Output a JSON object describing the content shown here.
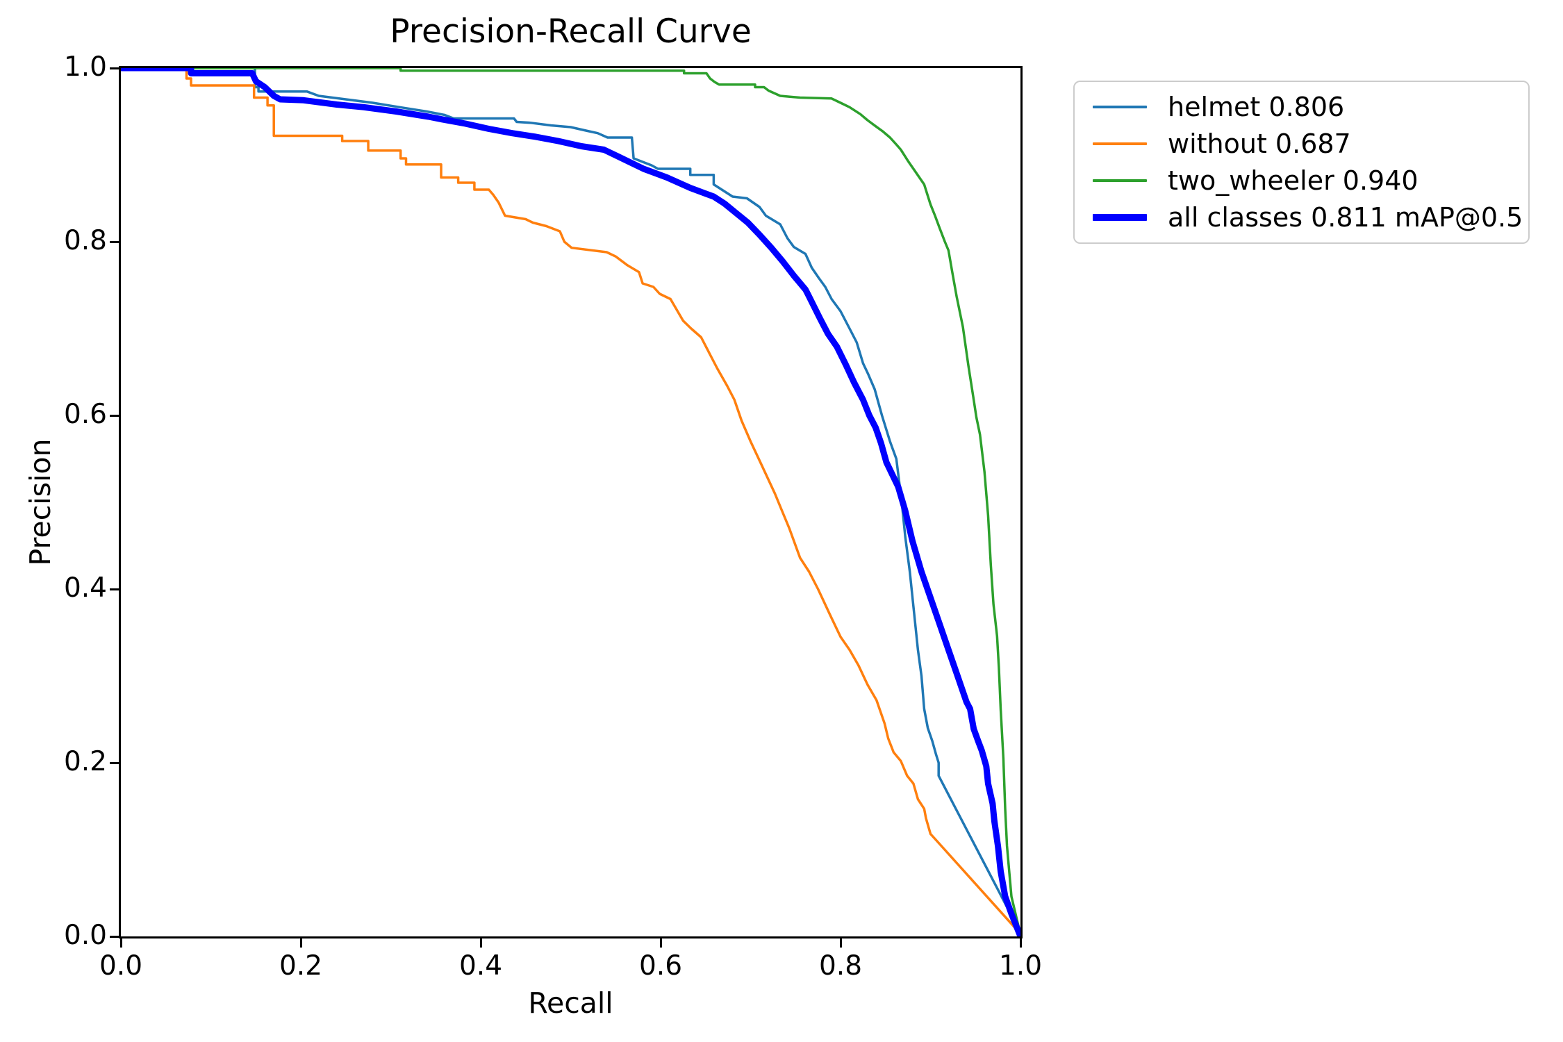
{
  "title": "Precision-Recall Curve",
  "axes": {
    "xlabel": "Recall",
    "ylabel": "Precision",
    "x_tick_labels": [
      "0.0",
      "0.2",
      "0.4",
      "0.6",
      "0.8",
      "1.0"
    ],
    "y_tick_labels": [
      "1.0",
      "0.8",
      "0.6",
      "0.4",
      "0.2",
      "0.0"
    ]
  },
  "legend": {
    "entries": [
      {
        "label": "helmet 0.806",
        "color": "#1f77b4",
        "thick": false
      },
      {
        "label": "without 0.687",
        "color": "#ff7f0e",
        "thick": false
      },
      {
        "label": "two_wheeler 0.940",
        "color": "#2ca02c",
        "thick": false
      },
      {
        "label": "all classes 0.811 mAP@0.5",
        "color": "#0000ff",
        "thick": true
      }
    ]
  },
  "colors": {
    "spine": "#000000",
    "legend_border": "#cccccc",
    "background": "#ffffff"
  },
  "chart_data": {
    "type": "line",
    "title": "Precision-Recall Curve",
    "xlabel": "Recall",
    "ylabel": "Precision",
    "xlim": [
      0,
      1
    ],
    "ylim": [
      0,
      1
    ],
    "x_ticks": [
      0.0,
      0.2,
      0.4,
      0.6,
      0.8,
      1.0
    ],
    "y_ticks": [
      0.0,
      0.2,
      0.4,
      0.6,
      0.8,
      1.0
    ],
    "grid": false,
    "legend_position": "outside upper right",
    "series": [
      {
        "name": "helmet 0.806",
        "color": "#1f77b4",
        "linewidth": 3.5,
        "ap": 0.806,
        "points": [
          [
            0,
            1
          ],
          [
            0.149,
            1
          ],
          [
            0.149,
            0.978
          ],
          [
            0.153,
            0.978
          ],
          [
            0.153,
            0.973
          ],
          [
            0.207,
            0.973
          ],
          [
            0.22,
            0.968
          ],
          [
            0.25,
            0.964
          ],
          [
            0.28,
            0.96
          ],
          [
            0.31,
            0.955
          ],
          [
            0.34,
            0.95
          ],
          [
            0.36,
            0.946
          ],
          [
            0.37,
            0.942
          ],
          [
            0.437,
            0.942
          ],
          [
            0.44,
            0.938
          ],
          [
            0.455,
            0.937
          ],
          [
            0.478,
            0.934
          ],
          [
            0.5,
            0.932
          ],
          [
            0.517,
            0.928
          ],
          [
            0.53,
            0.925
          ],
          [
            0.541,
            0.92
          ],
          [
            0.568,
            0.92
          ],
          [
            0.57,
            0.896
          ],
          [
            0.59,
            0.888
          ],
          [
            0.597,
            0.884
          ],
          [
            0.633,
            0.884
          ],
          [
            0.633,
            0.877
          ],
          [
            0.659,
            0.877
          ],
          [
            0.659,
            0.866
          ],
          [
            0.68,
            0.852
          ],
          [
            0.696,
            0.85
          ],
          [
            0.71,
            0.84
          ],
          [
            0.717,
            0.83
          ],
          [
            0.733,
            0.82
          ],
          [
            0.741,
            0.804
          ],
          [
            0.748,
            0.794
          ],
          [
            0.761,
            0.786
          ],
          [
            0.768,
            0.77
          ],
          [
            0.776,
            0.758
          ],
          [
            0.783,
            0.748
          ],
          [
            0.79,
            0.734
          ],
          [
            0.8,
            0.72
          ],
          [
            0.81,
            0.7
          ],
          [
            0.818,
            0.684
          ],
          [
            0.825,
            0.66
          ],
          [
            0.831,
            0.647
          ],
          [
            0.838,
            0.63
          ],
          [
            0.846,
            0.6
          ],
          [
            0.855,
            0.57
          ],
          [
            0.862,
            0.55
          ],
          [
            0.868,
            0.5
          ],
          [
            0.872,
            0.46
          ],
          [
            0.877,
            0.42
          ],
          [
            0.881,
            0.38
          ],
          [
            0.886,
            0.33
          ],
          [
            0.89,
            0.3
          ],
          [
            0.893,
            0.262
          ],
          [
            0.897,
            0.24
          ],
          [
            0.902,
            0.225
          ],
          [
            0.906,
            0.21
          ],
          [
            0.909,
            0.2
          ],
          [
            0.909,
            0.185
          ],
          [
            1,
            0.004
          ]
        ]
      },
      {
        "name": "without 0.687",
        "color": "#ff7f0e",
        "linewidth": 3.5,
        "ap": 0.687,
        "points": [
          [
            0,
            1
          ],
          [
            0.073,
            1
          ],
          [
            0.073,
            0.988
          ],
          [
            0.078,
            0.988
          ],
          [
            0.078,
            0.98
          ],
          [
            0.148,
            0.98
          ],
          [
            0.148,
            0.966
          ],
          [
            0.163,
            0.966
          ],
          [
            0.163,
            0.957
          ],
          [
            0.17,
            0.957
          ],
          [
            0.17,
            0.922
          ],
          [
            0.246,
            0.922
          ],
          [
            0.246,
            0.916
          ],
          [
            0.275,
            0.916
          ],
          [
            0.275,
            0.905
          ],
          [
            0.311,
            0.905
          ],
          [
            0.311,
            0.896
          ],
          [
            0.317,
            0.896
          ],
          [
            0.317,
            0.889
          ],
          [
            0.356,
            0.889
          ],
          [
            0.356,
            0.874
          ],
          [
            0.375,
            0.874
          ],
          [
            0.375,
            0.868
          ],
          [
            0.393,
            0.868
          ],
          [
            0.393,
            0.86
          ],
          [
            0.409,
            0.86
          ],
          [
            0.414,
            0.854
          ],
          [
            0.42,
            0.845
          ],
          [
            0.427,
            0.83
          ],
          [
            0.45,
            0.826
          ],
          [
            0.458,
            0.822
          ],
          [
            0.473,
            0.818
          ],
          [
            0.488,
            0.812
          ],
          [
            0.493,
            0.8
          ],
          [
            0.501,
            0.793
          ],
          [
            0.54,
            0.788
          ],
          [
            0.55,
            0.783
          ],
          [
            0.563,
            0.773
          ],
          [
            0.576,
            0.765
          ],
          [
            0.58,
            0.752
          ],
          [
            0.592,
            0.748
          ],
          [
            0.599,
            0.74
          ],
          [
            0.611,
            0.734
          ],
          [
            0.625,
            0.709
          ],
          [
            0.634,
            0.7
          ],
          [
            0.645,
            0.69
          ],
          [
            0.655,
            0.67
          ],
          [
            0.663,
            0.654
          ],
          [
            0.674,
            0.634
          ],
          [
            0.682,
            0.618
          ],
          [
            0.69,
            0.594
          ],
          [
            0.7,
            0.57
          ],
          [
            0.71,
            0.548
          ],
          [
            0.727,
            0.51
          ],
          [
            0.735,
            0.49
          ],
          [
            0.743,
            0.47
          ],
          [
            0.755,
            0.436
          ],
          [
            0.765,
            0.42
          ],
          [
            0.775,
            0.4
          ],
          [
            0.788,
            0.371
          ],
          [
            0.8,
            0.345
          ],
          [
            0.81,
            0.33
          ],
          [
            0.82,
            0.312
          ],
          [
            0.83,
            0.29
          ],
          [
            0.84,
            0.272
          ],
          [
            0.849,
            0.245
          ],
          [
            0.853,
            0.228
          ],
          [
            0.859,
            0.212
          ],
          [
            0.867,
            0.202
          ],
          [
            0.874,
            0.185
          ],
          [
            0.881,
            0.176
          ],
          [
            0.886,
            0.158
          ],
          [
            0.893,
            0.147
          ],
          [
            0.895,
            0.136
          ],
          [
            0.9,
            0.118
          ],
          [
            0.907,
            0.11
          ],
          [
            1,
            0.003
          ]
        ]
      },
      {
        "name": "two_wheeler 0.940",
        "color": "#2ca02c",
        "linewidth": 3.5,
        "ap": 0.94,
        "points": [
          [
            0,
            1
          ],
          [
            0.311,
            1
          ],
          [
            0.311,
            0.997
          ],
          [
            0.626,
            0.997
          ],
          [
            0.626,
            0.994
          ],
          [
            0.651,
            0.994
          ],
          [
            0.655,
            0.988
          ],
          [
            0.66,
            0.984
          ],
          [
            0.665,
            0.981
          ],
          [
            0.705,
            0.981
          ],
          [
            0.705,
            0.978
          ],
          [
            0.715,
            0.978
          ],
          [
            0.72,
            0.974
          ],
          [
            0.733,
            0.968
          ],
          [
            0.755,
            0.966
          ],
          [
            0.79,
            0.965
          ],
          [
            0.8,
            0.96
          ],
          [
            0.81,
            0.955
          ],
          [
            0.822,
            0.947
          ],
          [
            0.83,
            0.94
          ],
          [
            0.839,
            0.933
          ],
          [
            0.847,
            0.927
          ],
          [
            0.855,
            0.92
          ],
          [
            0.862,
            0.912
          ],
          [
            0.867,
            0.906
          ],
          [
            0.875,
            0.893
          ],
          [
            0.883,
            0.881
          ],
          [
            0.893,
            0.866
          ],
          [
            0.9,
            0.843
          ],
          [
            0.905,
            0.83
          ],
          [
            0.91,
            0.816
          ],
          [
            0.916,
            0.8
          ],
          [
            0.92,
            0.79
          ],
          [
            0.924,
            0.766
          ],
          [
            0.929,
            0.737
          ],
          [
            0.936,
            0.702
          ],
          [
            0.942,
            0.658
          ],
          [
            0.948,
            0.618
          ],
          [
            0.951,
            0.598
          ],
          [
            0.955,
            0.578
          ],
          [
            0.96,
            0.535
          ],
          [
            0.964,
            0.485
          ],
          [
            0.967,
            0.428
          ],
          [
            0.97,
            0.383
          ],
          [
            0.974,
            0.346
          ],
          [
            0.976,
            0.31
          ],
          [
            0.978,
            0.262
          ],
          [
            0.981,
            0.205
          ],
          [
            0.983,
            0.147
          ],
          [
            0.985,
            0.104
          ],
          [
            0.99,
            0.046
          ],
          [
            1,
            0.002
          ]
        ]
      },
      {
        "name": "all classes 0.811 mAP@0.5",
        "color": "#0000ff",
        "linewidth": 9,
        "ap": 0.811,
        "points": [
          [
            0,
            1
          ],
          [
            0.078,
            1
          ],
          [
            0.078,
            0.994
          ],
          [
            0.146,
            0.994
          ],
          [
            0.15,
            0.985
          ],
          [
            0.16,
            0.978
          ],
          [
            0.17,
            0.968
          ],
          [
            0.177,
            0.964
          ],
          [
            0.203,
            0.963
          ],
          [
            0.24,
            0.958
          ],
          [
            0.27,
            0.955
          ],
          [
            0.306,
            0.95
          ],
          [
            0.342,
            0.944
          ],
          [
            0.357,
            0.941
          ],
          [
            0.383,
            0.936
          ],
          [
            0.409,
            0.93
          ],
          [
            0.435,
            0.925
          ],
          [
            0.46,
            0.921
          ],
          [
            0.486,
            0.916
          ],
          [
            0.512,
            0.91
          ],
          [
            0.537,
            0.906
          ],
          [
            0.555,
            0.897
          ],
          [
            0.581,
            0.884
          ],
          [
            0.607,
            0.874
          ],
          [
            0.633,
            0.862
          ],
          [
            0.659,
            0.852
          ],
          [
            0.671,
            0.844
          ],
          [
            0.684,
            0.833
          ],
          [
            0.697,
            0.822
          ],
          [
            0.71,
            0.808
          ],
          [
            0.723,
            0.793
          ],
          [
            0.736,
            0.777
          ],
          [
            0.748,
            0.761
          ],
          [
            0.761,
            0.745
          ],
          [
            0.764,
            0.739
          ],
          [
            0.777,
            0.712
          ],
          [
            0.786,
            0.694
          ],
          [
            0.796,
            0.679
          ],
          [
            0.806,
            0.658
          ],
          [
            0.815,
            0.638
          ],
          [
            0.825,
            0.618
          ],
          [
            0.832,
            0.6
          ],
          [
            0.839,
            0.586
          ],
          [
            0.845,
            0.568
          ],
          [
            0.851,
            0.546
          ],
          [
            0.864,
            0.518
          ],
          [
            0.872,
            0.49
          ],
          [
            0.88,
            0.455
          ],
          [
            0.89,
            0.42
          ],
          [
            0.9,
            0.39
          ],
          [
            0.91,
            0.36
          ],
          [
            0.92,
            0.33
          ],
          [
            0.93,
            0.3
          ],
          [
            0.94,
            0.27
          ],
          [
            0.944,
            0.262
          ],
          [
            0.948,
            0.239
          ],
          [
            0.953,
            0.225
          ],
          [
            0.957,
            0.214
          ],
          [
            0.962,
            0.196
          ],
          [
            0.964,
            0.176
          ],
          [
            0.969,
            0.153
          ],
          [
            0.971,
            0.133
          ],
          [
            0.975,
            0.104
          ],
          [
            0.978,
            0.075
          ],
          [
            0.983,
            0.046
          ],
          [
            0.99,
            0.026
          ],
          [
            1,
            0
          ]
        ]
      }
    ]
  }
}
